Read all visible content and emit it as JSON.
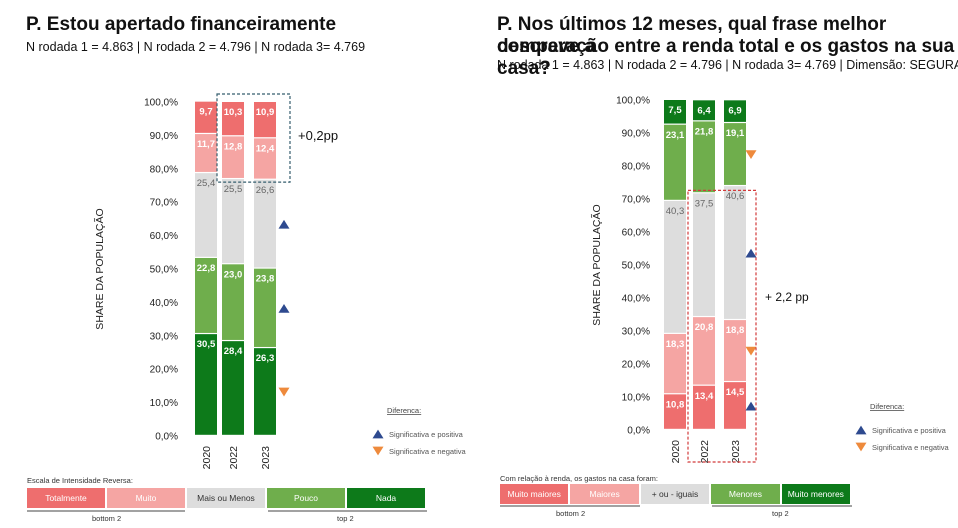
{
  "colors": {
    "dark_red": "#ee6e6e",
    "light_red": "#f5a5a3",
    "gray": "#dddddd",
    "light_green": "#6fae4c",
    "dark_green": "#0d7a1a",
    "tri_up": "#2e4a8f",
    "tri_down": "#ee8a3c",
    "box_left": "#355e6e",
    "box_right": "#d23a3a"
  },
  "left": {
    "title": "P. Estou apertado financeiramente",
    "subtitle": "N rodada 1 = 4.863  | N rodada 2 = 4.796 | N rodada 3= 4.769",
    "annotation": "+0,2pp",
    "scale_title": "Escala de Intensidade Reversa:",
    "scale_labels": [
      "Totalmente",
      "Muito",
      "Mais ou Menos",
      "Pouco",
      "Nada"
    ],
    "bottom_label": "bottom 2",
    "top_label": "top 2"
  },
  "right": {
    "title_line1": "P. Nos últimos 12 meses, qual frase melhor descreve a",
    "title_line2": "comparação entre a renda total e os gastos na sua casa?",
    "subtitle": "N rodada 1 = 4.863  | N rodada 2 = 4.796 | N rodada 3= 4.769 | Dimensão: SEGURANÇA",
    "annotation": "+ 2,2 pp",
    "scale_title": "Com relação à renda, os gastos na casa foram:",
    "scale_labels": [
      "Muito maiores",
      "Maiores",
      "+ ou - iguais",
      "Menores",
      "Muito menores"
    ],
    "bottom_label": "bottom 2",
    "top_label": "top 2"
  },
  "legend": {
    "title": "Diferenca:",
    "positive": "Significativa e positiva",
    "negative": "Significativa e negativa"
  },
  "chart_data": [
    {
      "type": "bar",
      "stacked": true,
      "ylabel": "SHARE DA POPULAÇÃO",
      "ylim": [
        0,
        100
      ],
      "yticks": [
        "0,0%",
        "10,0%",
        "20,0%",
        "30,0%",
        "40,0%",
        "50,0%",
        "60,0%",
        "70,0%",
        "80,0%",
        "90,0%",
        "100,0%"
      ],
      "categories": [
        "2020",
        "2022",
        "2023"
      ],
      "series": [
        {
          "name": "Nada",
          "values": [
            30.5,
            28.4,
            26.3
          ],
          "labels": [
            "30,5",
            "28,4",
            "26,3"
          ]
        },
        {
          "name": "Pouco",
          "values": [
            22.8,
            23.0,
            23.8
          ],
          "labels": [
            "22,8",
            "23,0",
            "23,8"
          ]
        },
        {
          "name": "Mais ou Menos",
          "values": [
            25.4,
            25.5,
            26.6
          ],
          "labels": [
            "25,4",
            "25,5",
            "26,6"
          ]
        },
        {
          "name": "Muito",
          "values": [
            11.7,
            12.8,
            12.4
          ],
          "labels": [
            "11,7",
            "12,8",
            "12,4"
          ]
        },
        {
          "name": "Totalmente",
          "values": [
            9.7,
            10.3,
            10.9
          ],
          "labels": [
            "9,7",
            "10,3",
            "10,9"
          ]
        }
      ],
      "significance_2023": {
        "Mais ou Menos": "up",
        "Pouco": "up",
        "Nada": "down"
      }
    },
    {
      "type": "bar",
      "stacked": true,
      "ylabel": "SHARE DA POPULAÇÃO",
      "ylim": [
        0,
        100
      ],
      "yticks": [
        "0,0%",
        "10,0%",
        "20,0%",
        "30,0%",
        "40,0%",
        "50,0%",
        "60,0%",
        "70,0%",
        "80,0%",
        "90,0%",
        "100,0%"
      ],
      "categories": [
        "2020",
        "2022",
        "2023"
      ],
      "series": [
        {
          "name": "Muito maiores",
          "values": [
            10.8,
            13.4,
            14.5
          ],
          "labels": [
            "10,8",
            "13,4",
            "14,5"
          ]
        },
        {
          "name": "Maiores",
          "values": [
            18.3,
            20.8,
            18.8
          ],
          "labels": [
            "18,3",
            "20,8",
            "18,8"
          ]
        },
        {
          "name": "+ ou - iguais",
          "values": [
            40.3,
            37.5,
            40.6
          ],
          "labels": [
            "40,3",
            "37,5",
            "40,6"
          ]
        },
        {
          "name": "Menores",
          "values": [
            23.1,
            21.8,
            19.1
          ],
          "labels": [
            "23,1",
            "21,8",
            "19,1"
          ]
        },
        {
          "name": "Muito menores",
          "values": [
            7.5,
            6.4,
            6.9
          ],
          "labels": [
            "7,5",
            "6,4",
            "6,9"
          ]
        }
      ],
      "significance_2023": {
        "Menores": "down",
        "+ ou - iguais": "up",
        "Maiores": "down",
        "Muito maiores": "up"
      }
    }
  ]
}
